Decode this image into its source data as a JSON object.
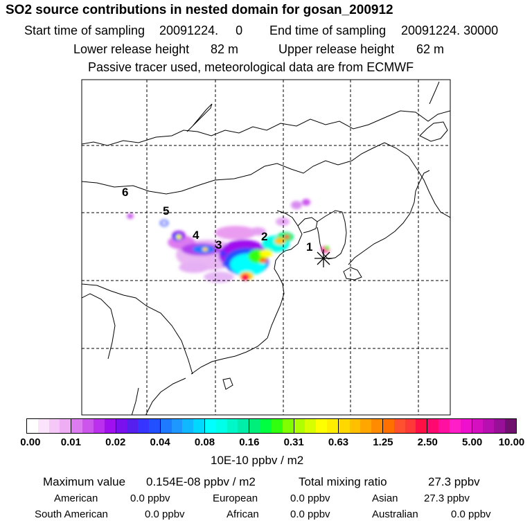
{
  "header": {
    "title": "SO2 source contributions in nested domain for gosan_200912",
    "start_label": "Start time of sampling",
    "start_value": "20091224.     0",
    "end_label": "End time of sampling",
    "end_value": "20091224. 30000",
    "lower_label": "Lower release height",
    "lower_value": "82 m",
    "upper_label": "Upper release height",
    "upper_value": "62 m",
    "note": "Passive tracer used, meteorological data are from ECMWF"
  },
  "map": {
    "source_labels": [
      "1",
      "2",
      "3",
      "4",
      "5",
      "6"
    ],
    "receptor_marker": "asterisk-marker",
    "grid": "dashed"
  },
  "colorbar": {
    "ticks": [
      "0.00",
      "0.01",
      "0.02",
      "0.04",
      "0.08",
      "0.16",
      "0.31",
      "0.63",
      "1.25",
      "2.50",
      "5.00",
      "10.00"
    ],
    "units": "10E-10 ppbv / m2",
    "colors": [
      "#ffffff",
      "#fbe3fb",
      "#f6c8f7",
      "#efaef4",
      "#dc7cf0",
      "#cc55ee",
      "#bb30ee",
      "#a010ee",
      "#7a10ee",
      "#5520ee",
      "#3535ff",
      "#2050ff",
      "#1e7aff",
      "#1e98ff",
      "#10b8ff",
      "#00d8ff",
      "#00ffff",
      "#00ffe8",
      "#00f8c8",
      "#00eeaa",
      "#00ee7a",
      "#00ff40",
      "#30ff10",
      "#80ff00",
      "#b0ff00",
      "#d8ff00",
      "#ffff00",
      "#ffee00",
      "#ffd800",
      "#ffc000",
      "#ffa600",
      "#ff8c00",
      "#ff7000",
      "#ff5030",
      "#ff3838",
      "#ff1044",
      "#ff0870",
      "#ff10a0",
      "#ff1ec8",
      "#ee10cc",
      "#d410c0",
      "#b810b0",
      "#981098",
      "#70106e"
    ]
  },
  "stats": {
    "max_label": "Maximum value",
    "max_value": "0.154E-08 ppbv / m2",
    "total_label": "Total mixing ratio",
    "total_value": "27.3 ppbv",
    "american_label": "American",
    "american_value": "0.0 ppbv",
    "european_label": "European",
    "european_value": "0.0 ppbv",
    "asian_label": "Asian",
    "asian_value": "27.3 ppbv",
    "south_american_label": "South American",
    "south_american_value": "0.0 ppbv",
    "african_label": "African",
    "african_value": "0.0 ppbv",
    "australian_label": "Australian",
    "australian_value": "0.0 ppbv"
  }
}
